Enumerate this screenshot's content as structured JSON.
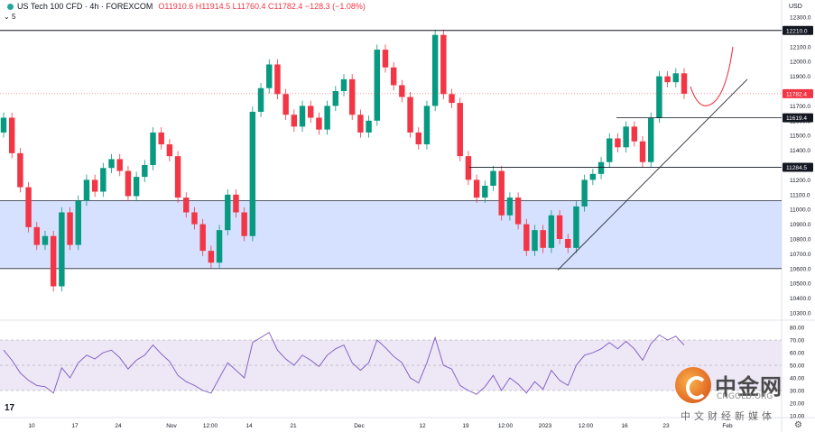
{
  "header": {
    "symbol": "US Tech 100 CFD · 4h · FOREXCOM",
    "ohlc": "O11910.6  H11914.5  L11760.4  C11782.4  −128.3 (−1.08%)",
    "indicator_count": "5"
  },
  "currency": "USD",
  "tv_logo": "17",
  "watermark": {
    "name": "中金网",
    "url": "CNGOLD.ORG",
    "tagline": "中文财经新媒体"
  },
  "colors": {
    "up": "#089981",
    "down": "#f23645",
    "zone": "#cfdcff",
    "rsi": "#7e57c2",
    "rsi_band": "#ede7f6",
    "projection": "#f23645"
  },
  "chart_data": [
    {
      "type": "candlestick",
      "title": "US Tech 100 CFD · 4h · FOREXCOM",
      "ylim": [
        10300,
        12300
      ],
      "y_ticks": [
        12300,
        12200,
        12100,
        12000,
        11900,
        11800,
        11700,
        11600,
        11500,
        11400,
        11300,
        11200,
        11100,
        11000,
        10900,
        10800,
        10700,
        10600,
        10500,
        10400,
        10300
      ],
      "x_ticks": [
        "10",
        "17",
        "24",
        "Nov",
        "12:00",
        "14",
        "21",
        "Dec",
        "12",
        "19",
        "12:00",
        "2023",
        "12:00",
        "16",
        "23",
        "Feb"
      ],
      "last_price": 11782.4,
      "price_labels": [
        12210.0,
        11782.4,
        11619.4,
        11284.5
      ],
      "horizontal_lines": [
        12210.0,
        11619.4,
        11284.5
      ],
      "zone": [
        10600,
        11060
      ],
      "trendline": {
        "from_x": "2023-01-06",
        "from_y": 10590,
        "to_x": "2023-01-31",
        "to_y": 11880
      },
      "projection": "curve down to ~11700 then up to ~12100",
      "candles": [
        {
          "x": "Oct 05",
          "o": 11520,
          "c": 11620
        },
        {
          "x": "Oct 06",
          "o": 11620,
          "c": 11380
        },
        {
          "x": "Oct 07",
          "o": 11380,
          "c": 11150
        },
        {
          "x": "Oct 10",
          "o": 11150,
          "c": 10880
        },
        {
          "x": "Oct 11",
          "o": 10880,
          "c": 10760
        },
        {
          "x": "Oct 12",
          "o": 10760,
          "c": 10820
        },
        {
          "x": "Oct 13",
          "o": 10820,
          "c": 10480
        },
        {
          "x": "Oct 13b",
          "o": 10480,
          "c": 10980
        },
        {
          "x": "Oct 14",
          "o": 10980,
          "c": 10760
        },
        {
          "x": "Oct 17",
          "o": 10760,
          "c": 11060
        },
        {
          "x": "Oct 18",
          "o": 11060,
          "c": 11200
        },
        {
          "x": "Oct 19",
          "o": 11200,
          "c": 11120
        },
        {
          "x": "Oct 20",
          "o": 11120,
          "c": 11280
        },
        {
          "x": "Oct 21",
          "o": 11280,
          "c": 11340
        },
        {
          "x": "Oct 24",
          "o": 11340,
          "c": 11260
        },
        {
          "x": "Oct 25",
          "o": 11260,
          "c": 11090
        },
        {
          "x": "Oct 26",
          "o": 11090,
          "c": 11220
        },
        {
          "x": "Oct 27",
          "o": 11220,
          "c": 11300
        },
        {
          "x": "Oct 28",
          "o": 11300,
          "c": 11520
        },
        {
          "x": "Oct 31",
          "o": 11520,
          "c": 11440
        },
        {
          "x": "Nov 01",
          "o": 11440,
          "c": 11360
        },
        {
          "x": "Nov 02",
          "o": 11360,
          "c": 11080
        },
        {
          "x": "Nov 03",
          "o": 11080,
          "c": 10980
        },
        {
          "x": "Nov 04",
          "o": 10980,
          "c": 10900
        },
        {
          "x": "Nov 07",
          "o": 10900,
          "c": 10720
        },
        {
          "x": "Nov 08",
          "o": 10720,
          "c": 10640
        },
        {
          "x": "Nov 09",
          "o": 10640,
          "c": 10860
        },
        {
          "x": "Nov 10",
          "o": 10860,
          "c": 11100
        },
        {
          "x": "Nov 10b",
          "o": 11100,
          "c": 10980
        },
        {
          "x": "Nov 11",
          "o": 10980,
          "c": 10820
        },
        {
          "x": "Nov 11b",
          "o": 10820,
          "c": 11660
        },
        {
          "x": "Nov 14",
          "o": 11660,
          "c": 11820
        },
        {
          "x": "Nov 15",
          "o": 11820,
          "c": 11980
        },
        {
          "x": "Nov 16",
          "o": 11980,
          "c": 11780
        },
        {
          "x": "Nov 17",
          "o": 11780,
          "c": 11640
        },
        {
          "x": "Nov 18",
          "o": 11640,
          "c": 11560
        },
        {
          "x": "Nov 21",
          "o": 11560,
          "c": 11700
        },
        {
          "x": "Nov 22",
          "o": 11700,
          "c": 11620
        },
        {
          "x": "Nov 23",
          "o": 11620,
          "c": 11540
        },
        {
          "x": "Nov 24",
          "o": 11540,
          "c": 11700
        },
        {
          "x": "Nov 25",
          "o": 11700,
          "c": 11800
        },
        {
          "x": "Nov 28",
          "o": 11800,
          "c": 11880
        },
        {
          "x": "Nov 29",
          "o": 11880,
          "c": 11640
        },
        {
          "x": "Nov 30",
          "o": 11640,
          "c": 11520
        },
        {
          "x": "Dec 01",
          "o": 11520,
          "c": 11600
        },
        {
          "x": "Dec 02",
          "o": 11600,
          "c": 12080
        },
        {
          "x": "Dec 05",
          "o": 12080,
          "c": 11960
        },
        {
          "x": "Dec 06",
          "o": 11960,
          "c": 11840
        },
        {
          "x": "Dec 07",
          "o": 11840,
          "c": 11760
        },
        {
          "x": "Dec 08",
          "o": 11760,
          "c": 11520
        },
        {
          "x": "Dec 09",
          "o": 11520,
          "c": 11440
        },
        {
          "x": "Dec 12",
          "o": 11440,
          "c": 11700
        },
        {
          "x": "Dec 13",
          "o": 11700,
          "c": 12180
        },
        {
          "x": "Dec 13b",
          "o": 12180,
          "c": 11780
        },
        {
          "x": "Dec 14",
          "o": 11780,
          "c": 11720
        },
        {
          "x": "Dec 15",
          "o": 11720,
          "c": 11360
        },
        {
          "x": "Dec 16",
          "o": 11360,
          "c": 11200
        },
        {
          "x": "Dec 19",
          "o": 11200,
          "c": 11080
        },
        {
          "x": "Dec 20",
          "o": 11080,
          "c": 11160
        },
        {
          "x": "Dec 21",
          "o": 11160,
          "c": 11260
        },
        {
          "x": "Dec 22",
          "o": 11260,
          "c": 10960
        },
        {
          "x": "Dec 23",
          "o": 10960,
          "c": 11080
        },
        {
          "x": "Dec 27",
          "o": 11080,
          "c": 10900
        },
        {
          "x": "Dec 28",
          "o": 10900,
          "c": 10720
        },
        {
          "x": "Dec 29",
          "o": 10720,
          "c": 10860
        },
        {
          "x": "Dec 30",
          "o": 10860,
          "c": 10740
        },
        {
          "x": "Jan 03",
          "o": 10740,
          "c": 10960
        },
        {
          "x": "Jan 04",
          "o": 10960,
          "c": 10800
        },
        {
          "x": "Jan 05",
          "o": 10800,
          "c": 10740
        },
        {
          "x": "Jan 06",
          "o": 10740,
          "c": 11020
        },
        {
          "x": "Jan 09",
          "o": 11020,
          "c": 11200
        },
        {
          "x": "Jan 10",
          "o": 11200,
          "c": 11240
        },
        {
          "x": "Jan 11",
          "o": 11240,
          "c": 11320
        },
        {
          "x": "Jan 12",
          "o": 11320,
          "c": 11480
        },
        {
          "x": "Jan 13",
          "o": 11480,
          "c": 11420
        },
        {
          "x": "Jan 17",
          "o": 11420,
          "c": 11560
        },
        {
          "x": "Jan 18",
          "o": 11560,
          "c": 11460
        },
        {
          "x": "Jan 19",
          "o": 11460,
          "c": 11320
        },
        {
          "x": "Jan 20",
          "o": 11320,
          "c": 11620
        },
        {
          "x": "Jan 23",
          "o": 11620,
          "c": 11900
        },
        {
          "x": "Jan 24",
          "o": 11900,
          "c": 11860
        },
        {
          "x": "Jan 25",
          "o": 11860,
          "c": 11920
        },
        {
          "x": "Jan 26",
          "o": 11920,
          "c": 11782.4
        }
      ]
    },
    {
      "type": "line",
      "title": "RSI",
      "ylim": [
        10,
        80
      ],
      "y_ticks": [
        80,
        70,
        60,
        50,
        40,
        30,
        20,
        10
      ],
      "bands": [
        30,
        70
      ],
      "values": [
        62,
        54,
        44,
        38,
        34,
        33,
        28,
        48,
        40,
        52,
        58,
        55,
        60,
        62,
        56,
        47,
        54,
        58,
        66,
        59,
        53,
        42,
        37,
        34,
        30,
        28,
        40,
        52,
        46,
        40,
        68,
        72,
        76,
        62,
        55,
        50,
        58,
        54,
        49,
        58,
        63,
        66,
        52,
        46,
        52,
        70,
        64,
        57,
        52,
        40,
        36,
        52,
        72,
        50,
        47,
        34,
        30,
        27,
        33,
        42,
        30,
        40,
        35,
        28,
        37,
        31,
        46,
        38,
        34,
        50,
        58,
        60,
        63,
        68,
        63,
        69,
        63,
        54,
        67,
        74,
        70,
        73,
        66
      ]
    }
  ]
}
